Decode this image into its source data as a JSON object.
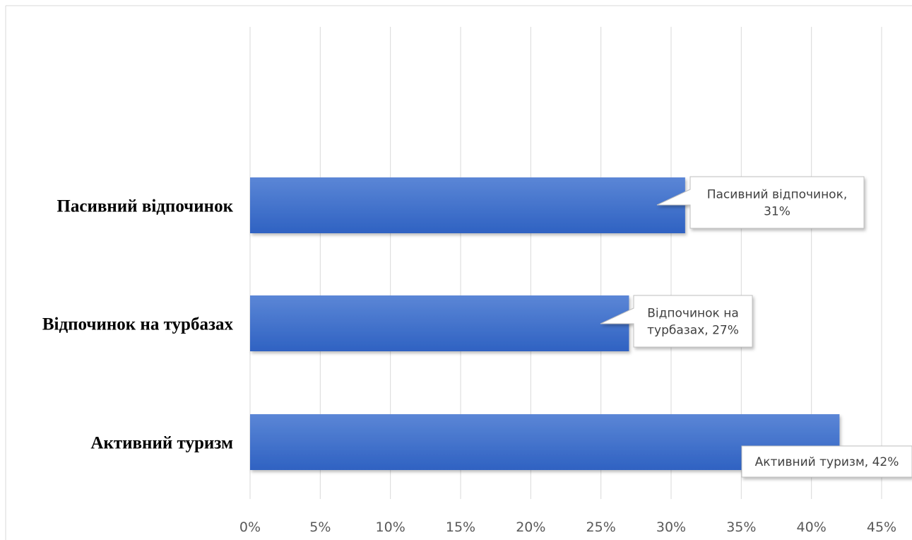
{
  "chart_data": {
    "type": "bar",
    "orientation": "horizontal",
    "categories": [
      "Пасивний відпочинок",
      "Відпочинок на турбазах",
      "Активний туризм"
    ],
    "values": [
      31,
      27,
      42
    ],
    "value_unit": "%",
    "xlim": [
      0,
      45
    ],
    "x_ticks": [
      "0%",
      "5%",
      "10%",
      "15%",
      "20%",
      "25%",
      "30%",
      "35%",
      "40%",
      "45%"
    ],
    "grid": "vertical",
    "data_labels": [
      [
        "Пасивний відпочинок,",
        "31%"
      ],
      [
        "Відпочинок на",
        "турбазах, 27%"
      ],
      [
        "Активний туризм, 42%"
      ]
    ],
    "colors": {
      "bar_top": "#5b86d6",
      "bar_bottom": "#2f62c2",
      "grid": "#d9d9d9"
    }
  }
}
